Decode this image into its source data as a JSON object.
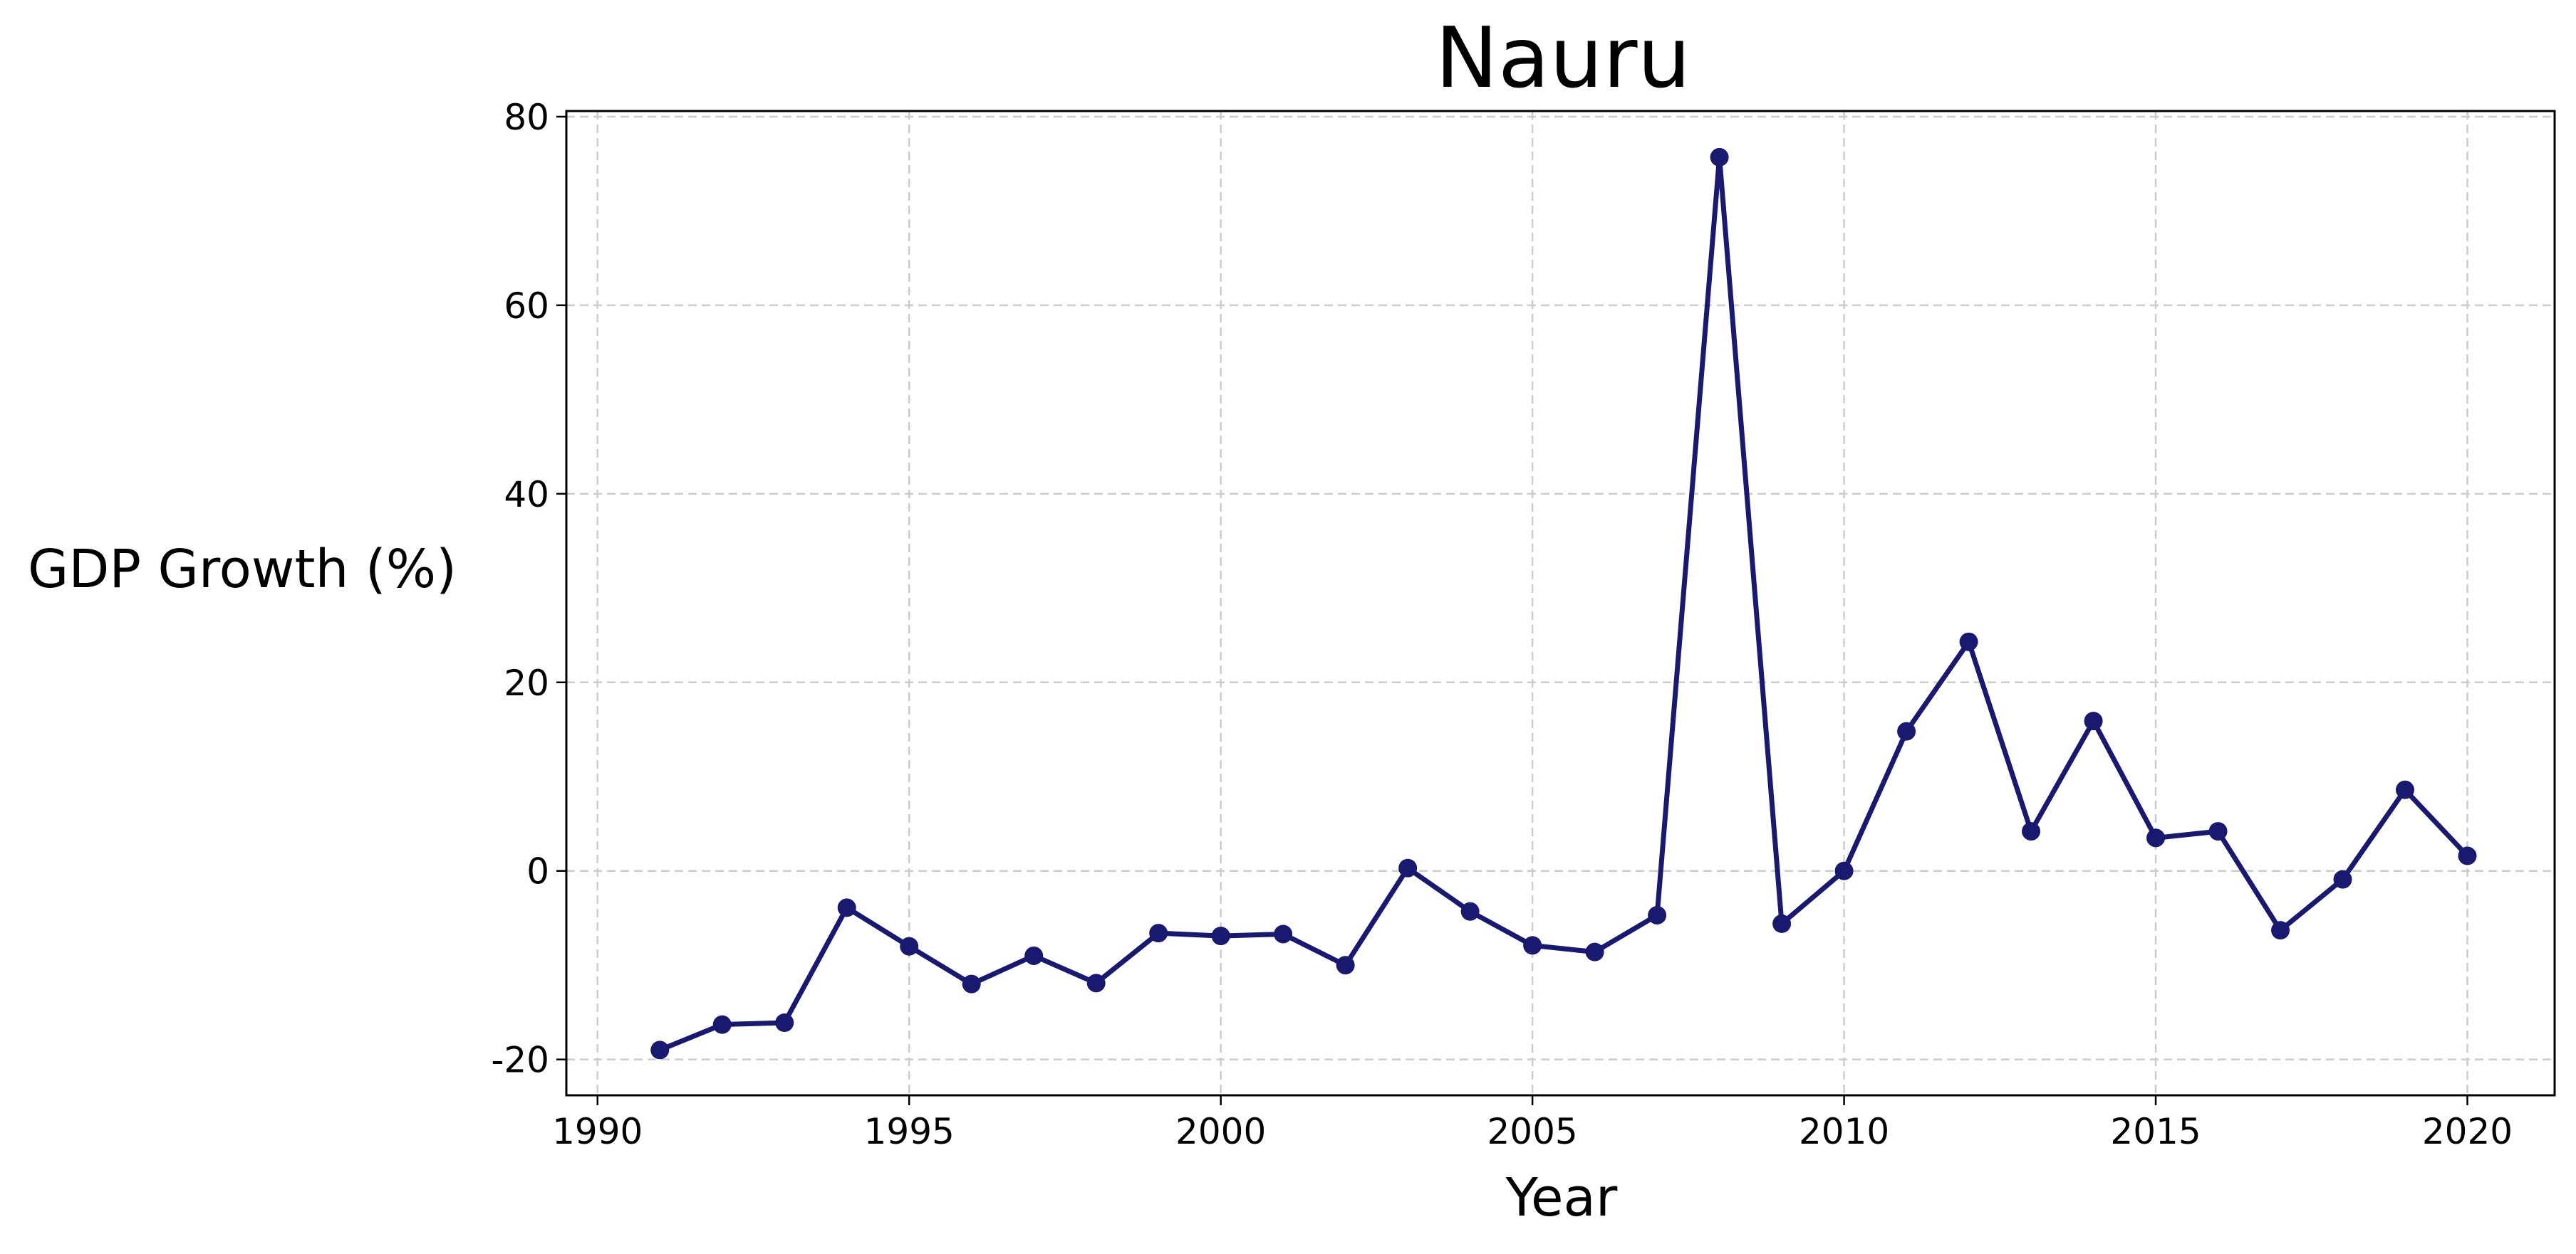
{
  "chart_data": {
    "type": "line",
    "title": "Nauru",
    "xlabel": "Year",
    "ylabel": "GDP Growth (%)",
    "xlim": [
      1989.5,
      2021.4
    ],
    "ylim": [
      -23.8,
      80.6
    ],
    "xticks": [
      1990,
      1995,
      2000,
      2005,
      2010,
      2015,
      2020
    ],
    "yticks": [
      -20,
      0,
      20,
      40,
      60,
      80
    ],
    "grid": true,
    "line_color": "#191970",
    "series": [
      {
        "x": [
          1991,
          1992,
          1993,
          1994,
          1995,
          1996,
          1997,
          1998,
          1999,
          2000,
          2001,
          2002,
          2003,
          2004,
          2005,
          2006,
          2007,
          2008,
          2009,
          2010,
          2011,
          2012,
          2013,
          2014,
          2015,
          2016,
          2017,
          2018,
          2019,
          2020
        ],
        "values": [
          -19.0,
          -16.3,
          -16.1,
          -3.9,
          -8.0,
          -12.0,
          -9.0,
          -11.9,
          -6.6,
          -6.9,
          -6.7,
          -10.0,
          0.3,
          -4.3,
          -7.9,
          -8.6,
          -4.7,
          75.7,
          -5.6,
          0.0,
          14.8,
          24.3,
          4.2,
          15.9,
          3.5,
          4.2,
          -6.3,
          -0.9,
          8.6,
          1.6
        ]
      }
    ]
  }
}
